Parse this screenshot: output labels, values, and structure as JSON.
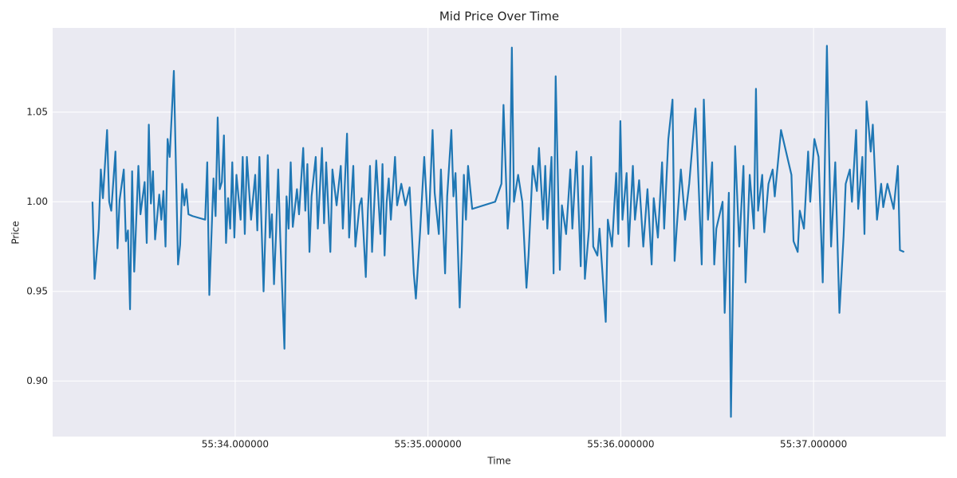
{
  "chart_data": {
    "type": "line",
    "title": "Mid Price Over Time",
    "xlabel": "Time",
    "ylabel": "Price",
    "color": "#1f77b4",
    "grid": true,
    "xlim": [
      33.069,
      37.35
    ],
    "xticks": [
      {
        "value": 33.944,
        "label": "55:34.000000"
      },
      {
        "value": 34.868,
        "label": "55:35.000000"
      },
      {
        "value": 35.792,
        "label": "55:36.000000"
      },
      {
        "value": 36.716,
        "label": "55:37.000000"
      }
    ],
    "ylim": [
      0.869,
      1.097
    ],
    "yticks": [
      {
        "value": 0.9,
        "label": "0.90"
      },
      {
        "value": 0.95,
        "label": "0.95"
      },
      {
        "value": 1.0,
        "label": "1.00"
      },
      {
        "value": 1.05,
        "label": "1.05"
      }
    ],
    "x": [
      33.26,
      33.27,
      33.29,
      33.3,
      33.31,
      33.33,
      33.34,
      33.35,
      33.37,
      33.38,
      33.39,
      33.41,
      33.42,
      33.43,
      33.44,
      33.45,
      33.46,
      33.48,
      33.49,
      33.51,
      33.52,
      33.53,
      33.54,
      33.55,
      33.56,
      33.58,
      33.59,
      33.6,
      33.61,
      33.62,
      33.63,
      33.65,
      33.67,
      33.68,
      33.69,
      33.7,
      33.71,
      33.72,
      33.74,
      33.8,
      33.81,
      33.82,
      33.84,
      33.85,
      33.86,
      33.87,
      33.88,
      33.89,
      33.9,
      33.91,
      33.92,
      33.93,
      33.94,
      33.95,
      33.97,
      33.98,
      33.99,
      34.0,
      34.02,
      34.04,
      34.05,
      34.06,
      34.08,
      34.1,
      34.11,
      34.12,
      34.13,
      34.14,
      34.15,
      34.16,
      34.18,
      34.19,
      34.2,
      34.21,
      34.22,
      34.24,
      34.25,
      34.27,
      34.28,
      34.29,
      34.3,
      34.31,
      34.33,
      34.34,
      34.36,
      34.37,
      34.38,
      34.4,
      34.41,
      34.43,
      34.45,
      34.46,
      34.48,
      34.49,
      34.51,
      34.52,
      34.54,
      34.55,
      34.57,
      34.58,
      34.59,
      34.6,
      34.62,
      34.64,
      34.65,
      34.66,
      34.67,
      34.68,
      34.69,
      34.71,
      34.72,
      34.74,
      34.76,
      34.78,
      34.8,
      34.81,
      34.83,
      34.85,
      34.87,
      34.89,
      34.9,
      34.92,
      34.93,
      34.95,
      34.96,
      34.98,
      34.99,
      35.0,
      35.02,
      35.03,
      35.04,
      35.05,
      35.06,
      35.08,
      35.19,
      35.22,
      35.23,
      35.25,
      35.26,
      35.27,
      35.28,
      35.3,
      35.32,
      35.34,
      35.35,
      35.37,
      35.39,
      35.4,
      35.42,
      35.43,
      35.44,
      35.46,
      35.47,
      35.48,
      35.5,
      35.51,
      35.53,
      35.55,
      35.56,
      35.58,
      35.6,
      35.61,
      35.62,
      35.64,
      35.65,
      35.66,
      35.68,
      35.69,
      35.72,
      35.73,
      35.75,
      35.77,
      35.78,
      35.79,
      35.8,
      35.82,
      35.83,
      35.85,
      35.86,
      35.88,
      35.9,
      35.92,
      35.94,
      35.95,
      35.97,
      35.99,
      36.0,
      36.02,
      36.04,
      36.05,
      36.06,
      36.08,
      36.1,
      36.12,
      36.15,
      36.16,
      36.18,
      36.19,
      36.21,
      36.23,
      36.24,
      36.25,
      36.28,
      36.29,
      36.31,
      36.32,
      36.34,
      36.36,
      36.38,
      36.39,
      36.41,
      36.43,
      36.44,
      36.45,
      36.47,
      36.48,
      36.5,
      36.52,
      36.53,
      36.56,
      36.61,
      36.62,
      36.64,
      36.65,
      36.67,
      36.69,
      36.7,
      36.72,
      36.74,
      36.76,
      36.78,
      36.8,
      36.82,
      36.84,
      36.86,
      36.87,
      36.89,
      36.9,
      36.92,
      36.93,
      36.95,
      36.96,
      36.97,
      36.99,
      37.0,
      37.02,
      37.04,
      37.05,
      37.07,
      37.1,
      37.12,
      37.13,
      37.15
    ],
    "values": [
      1.0,
      0.957,
      0.985,
      1.018,
      1.002,
      1.04,
      1.0,
      0.995,
      1.028,
      0.974,
      1.001,
      1.018,
      0.978,
      0.984,
      0.94,
      1.017,
      0.961,
      1.02,
      0.993,
      1.011,
      0.977,
      1.043,
      0.999,
      1.017,
      0.979,
      1.004,
      0.99,
      1.006,
      0.975,
      1.035,
      1.025,
      1.073,
      0.965,
      0.976,
      1.01,
      0.998,
      1.007,
      0.993,
      0.992,
      0.99,
      1.022,
      0.948,
      1.013,
      0.992,
      1.047,
      1.007,
      1.011,
      1.037,
      0.977,
      1.002,
      0.985,
      1.022,
      0.98,
      1.015,
      0.99,
      1.025,
      0.982,
      1.025,
      0.99,
      1.015,
      0.984,
      1.025,
      0.95,
      1.026,
      0.98,
      0.993,
      0.954,
      0.983,
      1.018,
      0.98,
      0.918,
      1.003,
      0.985,
      1.022,
      0.986,
      1.007,
      0.993,
      1.03,
      0.995,
      1.021,
      0.972,
      1.003,
      1.025,
      0.985,
      1.03,
      0.988,
      1.022,
      0.972,
      1.018,
      0.998,
      1.02,
      0.985,
      1.038,
      0.98,
      1.02,
      0.975,
      0.998,
      1.002,
      0.958,
      0.995,
      1.02,
      0.972,
      1.023,
      0.982,
      1.021,
      0.97,
      1.0,
      1.013,
      0.99,
      1.025,
      0.998,
      1.01,
      0.998,
      1.008,
      0.96,
      0.946,
      0.983,
      1.025,
      0.982,
      1.04,
      1.005,
      0.982,
      1.018,
      0.96,
      1.003,
      1.04,
      1.003,
      1.016,
      0.941,
      0.972,
      1.015,
      0.99,
      1.02,
      0.996,
      1.0,
      1.01,
      1.054,
      0.985,
      1.0,
      1.086,
      1.0,
      1.015,
      1.0,
      0.952,
      0.97,
      1.02,
      1.006,
      1.03,
      0.99,
      1.02,
      0.985,
      1.025,
      0.96,
      1.07,
      0.962,
      0.998,
      0.982,
      1.018,
      0.985,
      1.028,
      0.964,
      1.02,
      0.957,
      0.985,
      1.025,
      0.975,
      0.97,
      0.985,
      0.933,
      0.99,
      0.975,
      1.016,
      0.982,
      1.045,
      0.99,
      1.016,
      0.975,
      1.02,
      0.99,
      1.012,
      0.975,
      1.007,
      0.965,
      1.002,
      0.98,
      1.022,
      0.985,
      1.035,
      1.057,
      0.967,
      0.985,
      1.018,
      0.99,
      1.01,
      1.052,
      1.025,
      0.965,
      1.057,
      0.99,
      1.022,
      0.965,
      0.985,
      1.0,
      0.938,
      1.005,
      0.88,
      1.031,
      0.975,
      1.02,
      0.955,
      1.015,
      0.985,
      1.063,
      0.995,
      1.015,
      0.983,
      1.01,
      1.018,
      1.003,
      1.04,
      1.015,
      0.978,
      0.972,
      0.995,
      0.985,
      1.028,
      1.0,
      1.035,
      1.025,
      0.955,
      1.087,
      0.975,
      1.022,
      0.938,
      0.981,
      1.01,
      1.018,
      1.0,
      1.04,
      0.996,
      1.025,
      0.982,
      1.056,
      1.028,
      1.043,
      0.99,
      1.01,
      0.997,
      1.01,
      0.996,
      1.02,
      0.973,
      0.972
    ]
  }
}
